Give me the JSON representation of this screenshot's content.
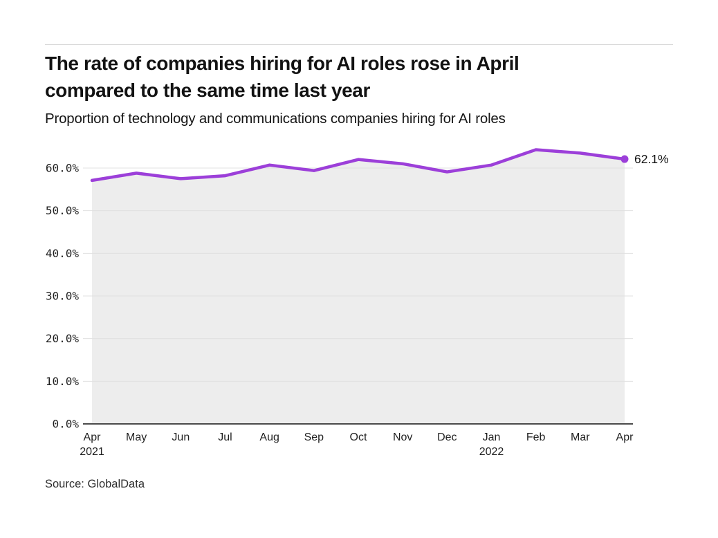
{
  "header": {
    "title_lines": [
      "The rate of companies hiring for AI roles rose in April",
      "compared to the same time last year"
    ],
    "subtitle": "Proportion of technology and communications companies hiring for AI roles"
  },
  "footer": {
    "source": "Source: GlobalData"
  },
  "chart_data": {
    "type": "line",
    "title": "The rate of companies hiring for AI roles rose in April compared to the same time last year",
    "subtitle": "Proportion of technology and communications companies hiring for AI roles",
    "categories": [
      "Apr",
      "May",
      "Jun",
      "Jul",
      "Aug",
      "Sep",
      "Oct",
      "Nov",
      "Dec",
      "Jan",
      "Feb",
      "Mar",
      "Apr"
    ],
    "category_years": [
      {
        "index": 0,
        "year": "2021"
      },
      {
        "index": 9,
        "year": "2022"
      }
    ],
    "series": [
      {
        "name": "Proportion of technology and communications companies hiring for AI roles",
        "values": [
          57.1,
          58.8,
          57.5,
          58.2,
          60.7,
          59.4,
          62.0,
          61.0,
          59.1,
          60.7,
          64.3,
          63.5,
          62.1
        ]
      }
    ],
    "ylim": [
      0,
      65
    ],
    "yticks": [
      0,
      10,
      20,
      30,
      40,
      50,
      60
    ],
    "ytick_suffix": "%",
    "grid": true,
    "legend": "none",
    "end_label": "62.1%",
    "area_under_line": true,
    "colors": {
      "line": "#9c3fd9",
      "area_fill": "#ededed",
      "gridline": "#e0e0e0",
      "axis": "#4a4a4a",
      "tick_text": "#1f1f1f",
      "divider": "#d8d8d8"
    }
  }
}
